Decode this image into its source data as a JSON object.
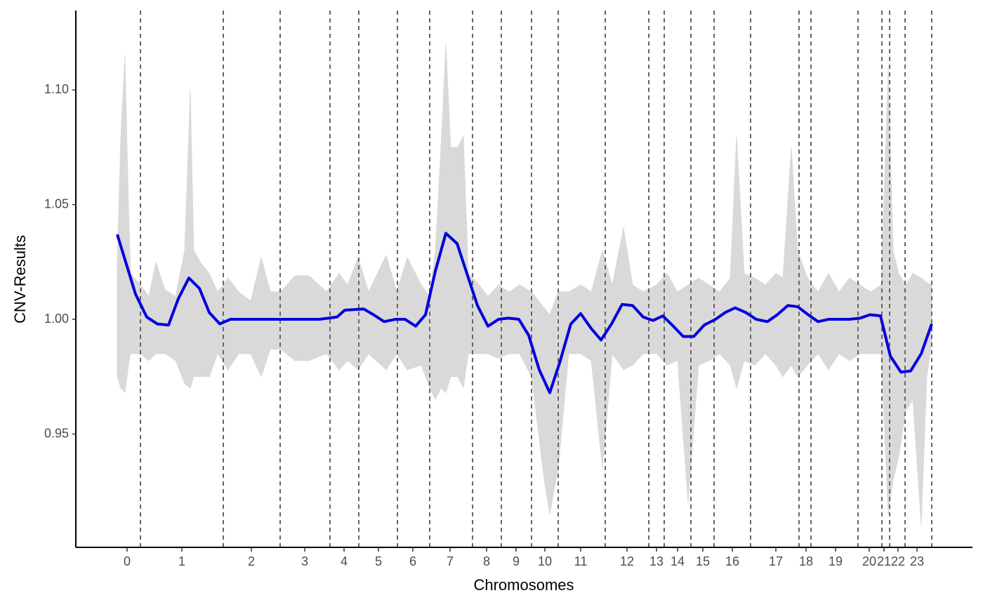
{
  "chart_data": {
    "type": "line",
    "x_label": "Chromosomes",
    "y_label": "CNV-Results",
    "xlim": [
      0,
      1277
    ],
    "ylim": [
      0.9006,
      1.1346
    ],
    "yticks": [
      {
        "value": 0.95,
        "label": "0.95"
      },
      {
        "value": 1.0,
        "label": "1.00"
      },
      {
        "value": 1.05,
        "label": "1.05"
      },
      {
        "value": 1.1,
        "label": "1.10"
      }
    ],
    "xticks": [
      {
        "value": 73,
        "label": "0"
      },
      {
        "value": 151,
        "label": "1"
      },
      {
        "value": 250,
        "label": "2"
      },
      {
        "value": 326,
        "label": "3"
      },
      {
        "value": 382,
        "label": "4"
      },
      {
        "value": 431,
        "label": "5"
      },
      {
        "value": 480,
        "label": "6"
      },
      {
        "value": 533,
        "label": "7"
      },
      {
        "value": 585,
        "label": "8"
      },
      {
        "value": 627,
        "label": "9"
      },
      {
        "value": 668,
        "label": "10"
      },
      {
        "value": 719,
        "label": "11"
      },
      {
        "value": 785,
        "label": "12"
      },
      {
        "value": 827,
        "label": "13"
      },
      {
        "value": 857,
        "label": "14"
      },
      {
        "value": 893,
        "label": "15"
      },
      {
        "value": 935,
        "label": "16"
      },
      {
        "value": 997,
        "label": "17"
      },
      {
        "value": 1040,
        "label": "18"
      },
      {
        "value": 1082,
        "label": "19"
      },
      {
        "value": 1130,
        "label": "20"
      },
      {
        "value": 1151,
        "label": "21"
      },
      {
        "value": 1171,
        "label": "22"
      },
      {
        "value": 1198,
        "label": "23"
      }
    ],
    "vlines": [
      92,
      210,
      291,
      362,
      403,
      458,
      504,
      565,
      606,
      649,
      687,
      754,
      816,
      838,
      876,
      909,
      961,
      1030,
      1047,
      1114,
      1148,
      1159,
      1181,
      1219
    ],
    "vline_color": "#666666",
    "x": [
      59,
      85,
      101,
      116,
      132,
      146,
      161,
      176,
      190,
      205,
      220,
      260,
      300,
      347,
      372,
      383,
      410,
      424,
      439,
      455,
      469,
      484,
      498,
      512,
      527,
      543,
      558,
      572,
      587,
      602,
      616,
      631,
      645,
      660,
      675,
      689,
      705,
      719,
      734,
      748,
      763,
      778,
      793,
      808,
      822,
      836,
      851,
      865,
      880,
      895,
      911,
      925,
      939,
      954,
      969,
      985,
      999,
      1014,
      1028,
      1043,
      1057,
      1072,
      1087,
      1102,
      1117,
      1131,
      1146,
      1160,
      1175,
      1189,
      1204,
      1219
    ],
    "series": [
      {
        "color": "#0000dd",
        "values": [
          1.037,
          1.011,
          1.001,
          0.998,
          0.9975,
          1.009,
          1.018,
          1.0135,
          1.003,
          0.998,
          1.0,
          1.0,
          1.0,
          1.0,
          1.001,
          1.004,
          1.0045,
          1.002,
          0.999,
          1.0,
          1.0,
          0.997,
          1.002,
          1.021,
          1.0375,
          1.033,
          1.019,
          1.006,
          0.997,
          1.0,
          1.0005,
          1.0,
          0.993,
          0.978,
          0.968,
          0.981,
          0.998,
          1.0025,
          0.996,
          0.991,
          0.998,
          1.0065,
          1.006,
          1.001,
          0.9995,
          1.0015,
          0.997,
          0.9925,
          0.9925,
          0.9975,
          1.0,
          1.003,
          1.005,
          1.003,
          1.0,
          0.999,
          1.002,
          1.006,
          1.0055,
          1.002,
          0.999,
          1.0,
          1.0,
          1.0,
          1.0005,
          1.002,
          1.0015,
          0.984,
          0.977,
          0.9775,
          0.985,
          0.998
        ]
      }
    ],
    "band": {
      "color": "#d9d9d9",
      "x": [
        59,
        64,
        70,
        75,
        78,
        92,
        104,
        114,
        127,
        142,
        155,
        163,
        168,
        177,
        190,
        202,
        217,
        232,
        249,
        264,
        277,
        292,
        312,
        332,
        357,
        375,
        387,
        402,
        417,
        442,
        457,
        472,
        492,
        504,
        512,
        520,
        527,
        534,
        544,
        552,
        559,
        572,
        587,
        602,
        617,
        632,
        649,
        667,
        675,
        687,
        702,
        719,
        734,
        750,
        764,
        780,
        793,
        808,
        827,
        842,
        857,
        872,
        887,
        902,
        917,
        932,
        941,
        952,
        967,
        982,
        997,
        1007,
        1019,
        1028,
        1042,
        1057,
        1072,
        1087,
        1102,
        1117,
        1132,
        1147,
        1157,
        1164,
        1172,
        1182,
        1192,
        1204,
        1212,
        1219
      ],
      "upper": [
        1.025,
        1.08,
        1.115,
        1.05,
        1.02,
        1.015,
        1.01,
        1.025,
        1.013,
        1.01,
        1.03,
        1.1,
        1.03,
        1.025,
        1.02,
        1.012,
        1.018,
        1.012,
        1.008,
        1.027,
        1.012,
        1.012,
        1.019,
        1.019,
        1.012,
        1.02,
        1.015,
        1.027,
        1.012,
        1.028,
        1.012,
        1.027,
        1.015,
        1.01,
        1.03,
        1.075,
        1.12,
        1.075,
        1.075,
        1.08,
        1.02,
        1.016,
        1.01,
        1.015,
        1.012,
        1.015,
        1.012,
        1.005,
        1.002,
        1.012,
        1.012,
        1.015,
        1.012,
        1.03,
        1.015,
        1.04,
        1.015,
        1.012,
        1.015,
        1.02,
        1.012,
        1.015,
        1.018,
        1.015,
        1.012,
        1.018,
        1.08,
        1.02,
        1.018,
        1.015,
        1.02,
        1.018,
        1.075,
        1.03,
        1.018,
        1.012,
        1.02,
        1.012,
        1.018,
        1.015,
        1.012,
        1.015,
        1.11,
        1.03,
        1.02,
        1.015,
        1.02,
        1.018,
        1.016,
        1.015
      ],
      "lower": [
        0.975,
        0.97,
        0.968,
        0.98,
        0.985,
        0.985,
        0.982,
        0.985,
        0.985,
        0.982,
        0.972,
        0.97,
        0.975,
        0.975,
        0.975,
        0.985,
        0.978,
        0.985,
        0.985,
        0.975,
        0.987,
        0.987,
        0.982,
        0.982,
        0.985,
        0.978,
        0.982,
        0.978,
        0.985,
        0.978,
        0.985,
        0.978,
        0.98,
        0.97,
        0.965,
        0.97,
        0.968,
        0.975,
        0.975,
        0.97,
        0.985,
        0.985,
        0.985,
        0.983,
        0.985,
        0.985,
        0.975,
        0.93,
        0.915,
        0.935,
        0.985,
        0.985,
        0.982,
        0.935,
        0.985,
        0.978,
        0.98,
        0.985,
        0.985,
        0.98,
        0.982,
        0.92,
        0.98,
        0.982,
        0.985,
        0.98,
        0.97,
        0.982,
        0.98,
        0.985,
        0.98,
        0.975,
        0.98,
        0.975,
        0.98,
        0.985,
        0.978,
        0.985,
        0.982,
        0.985,
        0.985,
        0.985,
        0.915,
        0.93,
        0.94,
        0.96,
        0.965,
        0.91,
        0.975,
        0.99
      ]
    }
  }
}
